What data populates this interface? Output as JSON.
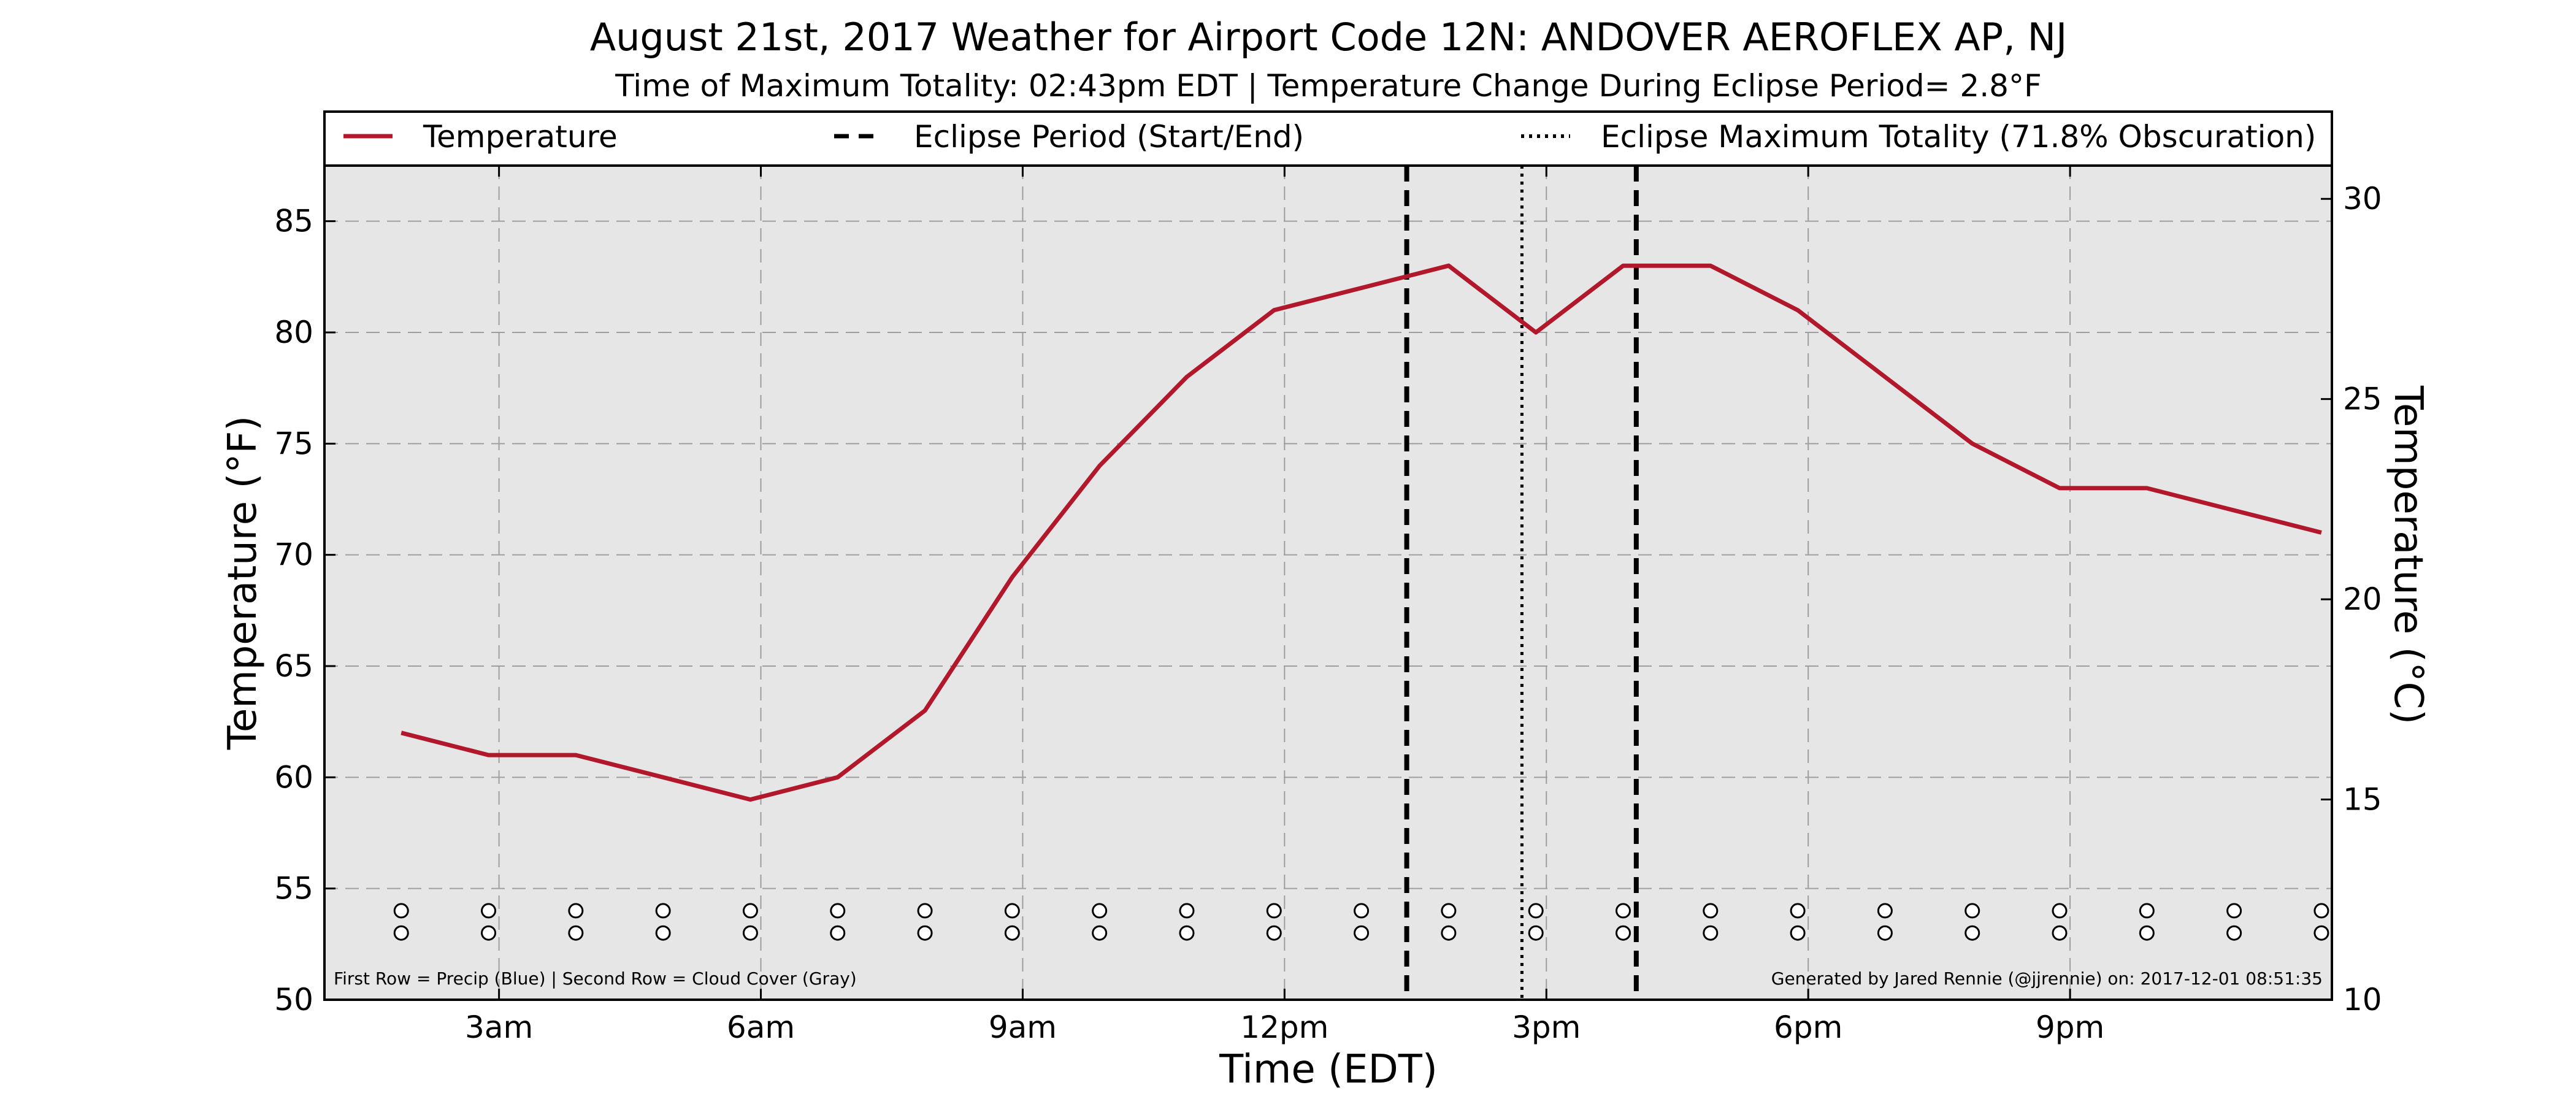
{
  "chart_data": {
    "type": "line",
    "title": "August 21st, 2017 Weather for Airport Code 12N: ANDOVER AEROFLEX AP, NJ",
    "subtitle": "Time of Maximum Totality: 02:43pm EDT | Temperature Change During Eclipse Period= 2.8°F",
    "xlabel": "Time (EDT)",
    "ylabel": "Temperature (°F)",
    "ylabel_right": "Temperature (°C)",
    "x_unit": "hours after midnight",
    "xlim": [
      1.0,
      24.0
    ],
    "ylim": [
      50,
      87.5
    ],
    "ylim_right": [
      10,
      30.83
    ],
    "x_ticks": [
      {
        "value": 3,
        "label": "3am"
      },
      {
        "value": 6,
        "label": "6am"
      },
      {
        "value": 9,
        "label": "9am"
      },
      {
        "value": 12,
        "label": "12pm"
      },
      {
        "value": 15,
        "label": "3pm"
      },
      {
        "value": 18,
        "label": "6pm"
      },
      {
        "value": 21,
        "label": "9pm"
      }
    ],
    "y_ticks": [
      50,
      55,
      60,
      65,
      70,
      75,
      80,
      85
    ],
    "y_ticks_right": [
      10,
      15,
      20,
      25,
      30
    ],
    "grid": true,
    "legend_position": "top",
    "series": [
      {
        "name": "Temperature",
        "color": "#b2182b",
        "x": [
          1.88,
          2.88,
          3.88,
          4.88,
          5.88,
          6.88,
          7.88,
          8.88,
          9.88,
          10.88,
          11.88,
          12.88,
          13.88,
          14.88,
          15.88,
          16.88,
          17.88,
          18.88,
          19.88,
          20.88,
          21.88,
          22.88,
          23.88
        ],
        "values": [
          62,
          61,
          61,
          60,
          59,
          60,
          63,
          69,
          74,
          78,
          81,
          82,
          83,
          80,
          83,
          83,
          81,
          78,
          75,
          73,
          73,
          72,
          71
        ]
      }
    ],
    "eclipse_period": {
      "label": "Eclipse Period (Start/End)",
      "start": 13.4,
      "end": 16.03
    },
    "eclipse_max": {
      "label": "Eclipse Maximum Totality (71.8% Obscuration)",
      "time": 14.72
    },
    "markers": {
      "x": [
        1.88,
        2.88,
        3.88,
        4.88,
        5.88,
        6.88,
        7.88,
        8.88,
        9.88,
        10.88,
        11.88,
        12.88,
        13.88,
        14.88,
        15.88,
        16.88,
        17.88,
        18.88,
        19.88,
        20.88,
        21.88,
        22.88,
        23.88
      ],
      "row1_y": 54,
      "row2_y": 53
    },
    "footnote_left": "First Row = Precip (Blue) | Second Row = Cloud Cover (Gray)",
    "footnote_right": "Generated by Jared Rennie (@jjrennie) on: 2017-12-01 08:51:35"
  }
}
